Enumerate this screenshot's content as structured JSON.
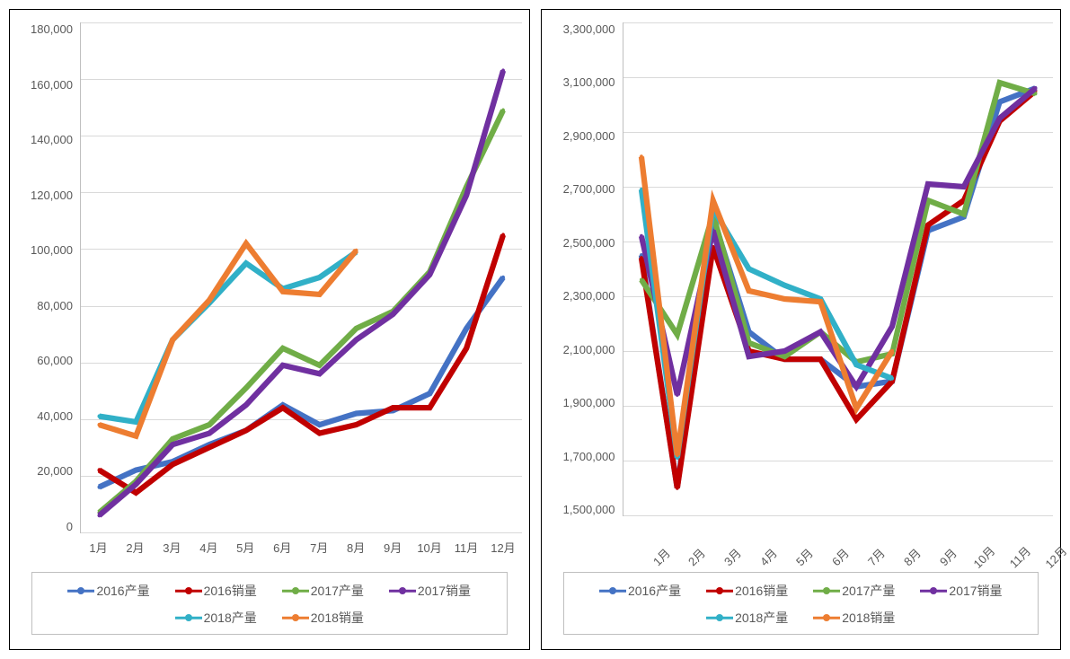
{
  "background_color": "#ffffff",
  "panel_border_color": "#000000",
  "grid_color": "#d9d9d9",
  "axis_font_color": "#595959",
  "axis_fontsize": 13,
  "legend_fontsize": 14,
  "marker_size": 5,
  "line_width": 2.5,
  "categories": [
    "1月",
    "2月",
    "3月",
    "4月",
    "5月",
    "6月",
    "7月",
    "8月",
    "9月",
    "10月",
    "11月",
    "12月"
  ],
  "series_defs": [
    {
      "key": "p2016",
      "label": "2016产量",
      "color": "#4472c4"
    },
    {
      "key": "s2016",
      "label": "2016销量",
      "color": "#c00000"
    },
    {
      "key": "p2017",
      "label": "2017产量",
      "color": "#70ad47"
    },
    {
      "key": "s2017",
      "label": "2017销量",
      "color": "#7030a0"
    },
    {
      "key": "p2018",
      "label": "2018产量",
      "color": "#31b0c7"
    },
    {
      "key": "s2018",
      "label": "2018销量",
      "color": "#ed7d31"
    }
  ],
  "left_chart": {
    "type": "line",
    "ylim": [
      0,
      180000
    ],
    "ytick_step": 20000,
    "ytick_labels": [
      "0",
      "20,000",
      "40,000",
      "60,000",
      "80,000",
      "100,000",
      "120,000",
      "140,000",
      "160,000",
      "180,000"
    ],
    "x_rotated": false,
    "series": {
      "p2016": [
        16000,
        22000,
        25000,
        31000,
        36000,
        45000,
        38000,
        42000,
        43000,
        49000,
        72000,
        90000
      ],
      "s2016": [
        22000,
        14000,
        24000,
        30000,
        36000,
        44000,
        35000,
        38000,
        44000,
        44000,
        65000,
        105000
      ],
      "p2017": [
        7000,
        18000,
        33000,
        38000,
        51000,
        65000,
        59000,
        72000,
        78000,
        92000,
        122000,
        149000
      ],
      "s2017": [
        6000,
        17000,
        31000,
        35000,
        45000,
        59000,
        56000,
        68000,
        77000,
        91000,
        119000,
        163000
      ],
      "p2018": [
        41000,
        39000,
        68000,
        81000,
        95000,
        86000,
        90000,
        99000,
        null,
        null,
        null,
        null
      ],
      "s2018": [
        38000,
        34000,
        68000,
        82000,
        102000,
        85000,
        84000,
        99500,
        null,
        null,
        null,
        null
      ]
    }
  },
  "right_chart": {
    "type": "line",
    "ylim": [
      1500000,
      3300000
    ],
    "ytick_step": 200000,
    "ytick_labels": [
      "1,500,000",
      "1,700,000",
      "1,900,000",
      "2,100,000",
      "2,300,000",
      "2,500,000",
      "2,700,000",
      "2,900,000",
      "3,100,000",
      "3,300,000"
    ],
    "x_rotated": true,
    "series": {
      "p2016": [
        2450000,
        1600000,
        2590000,
        2170000,
        2070000,
        2070000,
        1970000,
        1990000,
        2540000,
        2590000,
        3010000,
        3060000
      ],
      "s2016": [
        2440000,
        1600000,
        2480000,
        2100000,
        2070000,
        2070000,
        1850000,
        1990000,
        2560000,
        2650000,
        2940000,
        3050000
      ],
      "p2017": [
        2360000,
        2160000,
        2600000,
        2130000,
        2080000,
        2170000,
        2060000,
        2090000,
        2650000,
        2600000,
        3080000,
        3040000
      ],
      "s2017": [
        2520000,
        1940000,
        2540000,
        2080000,
        2100000,
        2170000,
        1970000,
        2190000,
        2710000,
        2700000,
        2950000,
        3060000
      ],
      "p2018": [
        2690000,
        1710000,
        2620000,
        2400000,
        2340000,
        2290000,
        2050000,
        2000000,
        null,
        null,
        null,
        null
      ],
      "s2018": [
        2810000,
        1720000,
        2650000,
        2320000,
        2290000,
        2280000,
        1890000,
        2100000,
        null,
        null,
        null,
        null
      ]
    }
  }
}
